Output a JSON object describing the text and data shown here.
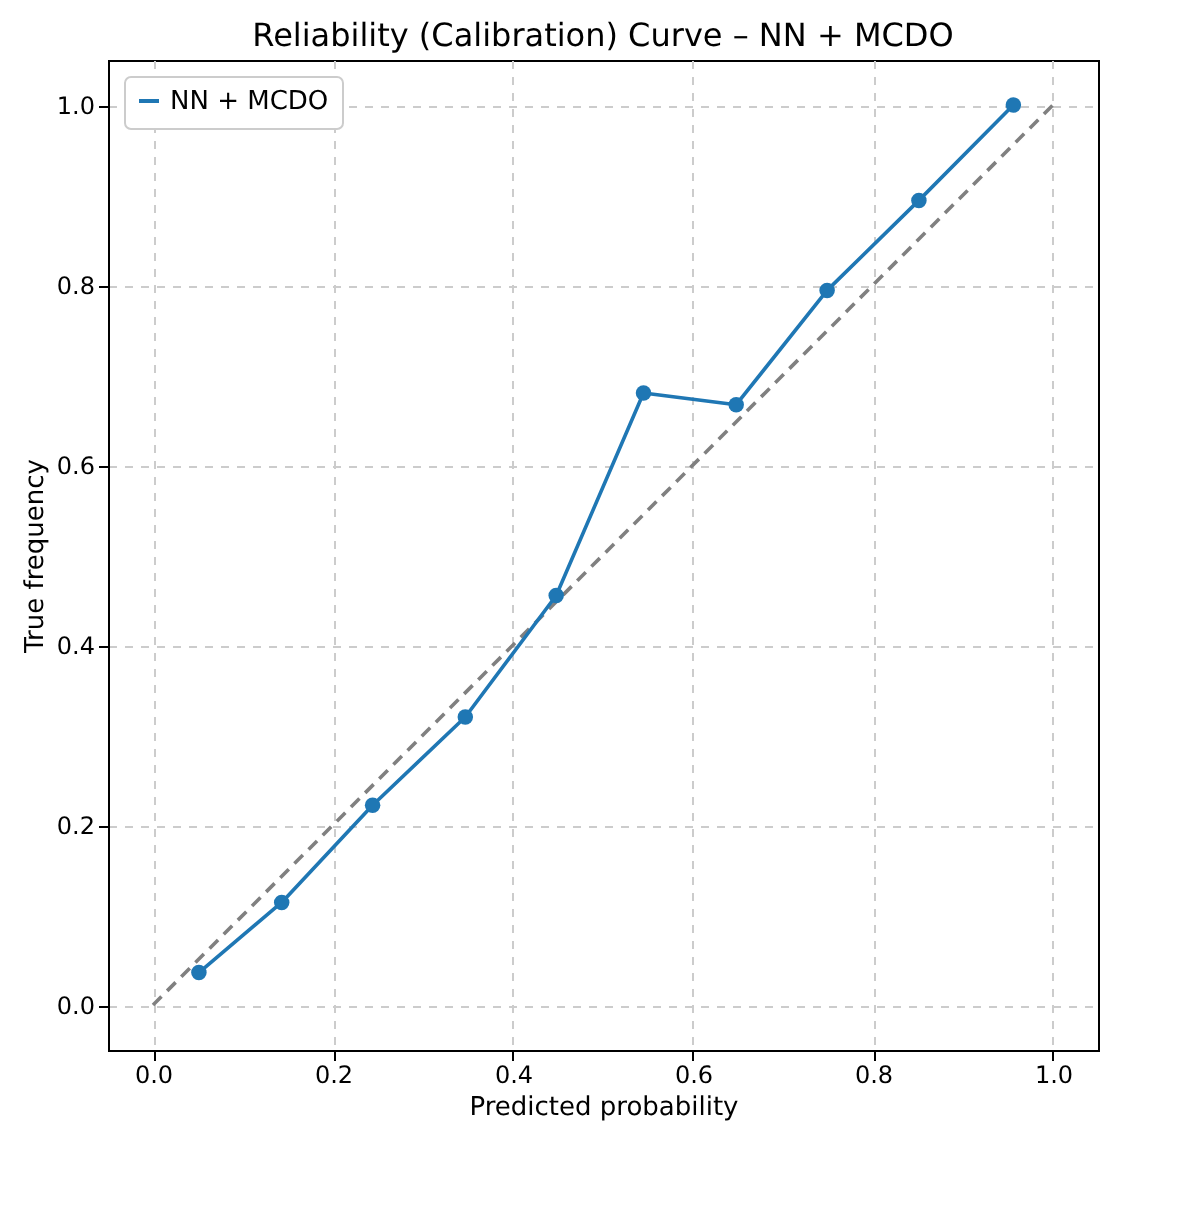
{
  "chart_data": {
    "type": "line",
    "title": "Reliability (Calibration) Curve – NN + MCDO",
    "xlabel": "Predicted probability",
    "ylabel": "True frequency",
    "series": [
      {
        "name": "NN + MCDO",
        "color": "#1f77b4",
        "marker": "circle",
        "line_style": "solid",
        "x": [
          0.051,
          0.143,
          0.244,
          0.347,
          0.448,
          0.545,
          0.648,
          0.749,
          0.851,
          0.956
        ],
        "values": [
          0.036,
          0.114,
          0.222,
          0.32,
          0.455,
          0.68,
          0.667,
          0.794,
          0.894,
          1.0
        ]
      },
      {
        "color": "#808080",
        "marker": "none",
        "line_style": "dashed",
        "x": [
          0,
          1
        ],
        "values": [
          0,
          1
        ]
      }
    ],
    "xlim": [
      -0.05,
      1.05
    ],
    "ylim": [
      -0.05,
      1.05
    ],
    "xticks": [
      {
        "value": 0,
        "label": "0.0"
      },
      0.2,
      0.4,
      0.6,
      0.8,
      {
        "value": 1,
        "label": "1.0"
      }
    ],
    "yticks": [
      {
        "value": 0,
        "label": "0.0"
      },
      0.2,
      0.4,
      0.6,
      0.8,
      {
        "value": 1,
        "label": "1.0"
      }
    ],
    "grid": true,
    "legend": "top left"
  }
}
